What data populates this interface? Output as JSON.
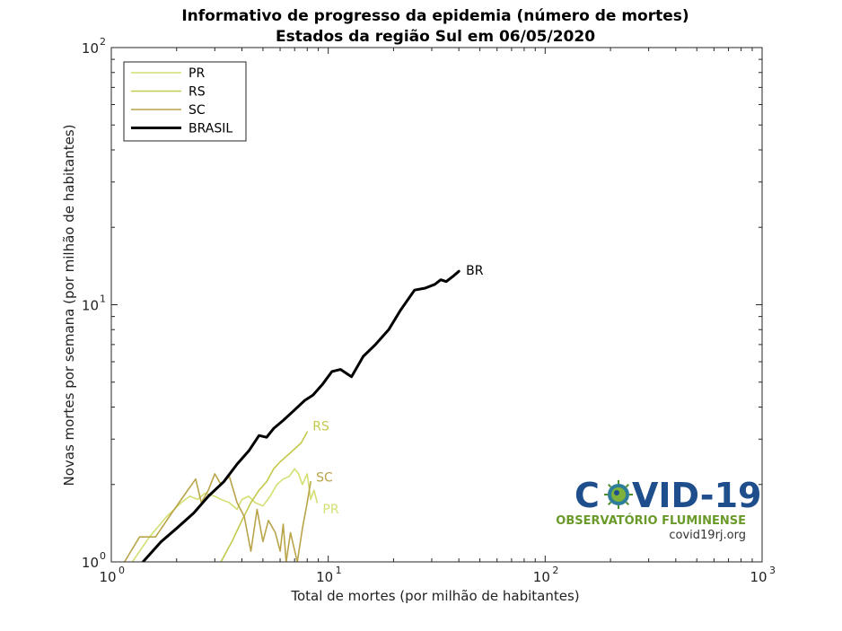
{
  "chart_data": {
    "type": "line",
    "title": "Informativo de progresso da epidemia (número de mortes)",
    "subtitle": "Estados da região Sul em 06/05/2020",
    "xlabel": "Total de mortes (por milhão de habitantes)",
    "ylabel": "Novas mortes por semana (por milhão de habitantes)",
    "xscale": "log",
    "yscale": "log",
    "xlim": [
      1,
      1000
    ],
    "ylim": [
      1,
      100
    ],
    "x_ticks": [
      {
        "base": "10",
        "exp": "0"
      },
      {
        "base": "10",
        "exp": "1"
      },
      {
        "base": "10",
        "exp": "2"
      },
      {
        "base": "10",
        "exp": "3"
      }
    ],
    "y_ticks": [
      {
        "base": "10",
        "exp": "0"
      },
      {
        "base": "10",
        "exp": "1"
      },
      {
        "base": "10",
        "exp": "2"
      }
    ],
    "grid": false,
    "legend_position": "top-left",
    "series": [
      {
        "name": "PR",
        "end_label": "PR",
        "color": "#d4df73",
        "width": 1.6,
        "points": [
          [
            1.25,
            1.0
          ],
          [
            1.5,
            1.25
          ],
          [
            1.8,
            1.5
          ],
          [
            2.1,
            1.7
          ],
          [
            2.3,
            1.8
          ],
          [
            2.5,
            1.75
          ],
          [
            2.7,
            1.85
          ],
          [
            3.0,
            1.8
          ],
          [
            3.2,
            1.75
          ],
          [
            3.5,
            1.7
          ],
          [
            3.8,
            1.6
          ],
          [
            4.0,
            1.75
          ],
          [
            4.3,
            1.8
          ],
          [
            4.6,
            1.7
          ],
          [
            5.0,
            1.65
          ],
          [
            5.4,
            1.8
          ],
          [
            5.8,
            2.0
          ],
          [
            6.2,
            2.1
          ],
          [
            6.6,
            2.15
          ],
          [
            7.0,
            2.3
          ],
          [
            7.3,
            2.2
          ],
          [
            7.6,
            2.0
          ],
          [
            8.0,
            2.2
          ],
          [
            8.3,
            1.75
          ],
          [
            8.6,
            1.9
          ],
          [
            8.9,
            1.7
          ]
        ]
      },
      {
        "name": "RS",
        "end_label": "RS",
        "color": "#c3c94a",
        "width": 1.6,
        "points": [
          [
            3.2,
            1.0
          ],
          [
            3.6,
            1.2
          ],
          [
            4.0,
            1.45
          ],
          [
            4.4,
            1.7
          ],
          [
            4.8,
            1.9
          ],
          [
            5.2,
            2.05
          ],
          [
            5.6,
            2.3
          ],
          [
            6.0,
            2.45
          ],
          [
            6.5,
            2.6
          ],
          [
            7.0,
            2.75
          ],
          [
            7.5,
            2.9
          ],
          [
            8.0,
            3.2
          ]
        ]
      },
      {
        "name": "SC",
        "end_label": "SC",
        "color": "#b9a44a",
        "width": 1.6,
        "points": [
          [
            1.15,
            1.0
          ],
          [
            1.35,
            1.25
          ],
          [
            1.6,
            1.25
          ],
          [
            1.9,
            1.55
          ],
          [
            2.2,
            1.85
          ],
          [
            2.45,
            2.1
          ],
          [
            2.6,
            1.7
          ],
          [
            2.8,
            1.9
          ],
          [
            3.0,
            2.2
          ],
          [
            3.2,
            2.0
          ],
          [
            3.5,
            2.15
          ],
          [
            3.8,
            1.7
          ],
          [
            4.1,
            1.5
          ],
          [
            4.4,
            1.1
          ],
          [
            4.7,
            1.6
          ],
          [
            5.0,
            1.2
          ],
          [
            5.3,
            1.45
          ],
          [
            5.7,
            1.3
          ],
          [
            6.0,
            1.1
          ],
          [
            6.2,
            1.4
          ],
          [
            6.4,
            1.0
          ],
          [
            6.7,
            1.3
          ],
          [
            7.2,
            1.0
          ],
          [
            7.6,
            1.35
          ],
          [
            8.0,
            1.7
          ],
          [
            8.3,
            2.05
          ]
        ]
      },
      {
        "name": "BRASIL",
        "end_label": "BR",
        "color": "#000000",
        "width": 3,
        "points": [
          [
            1.4,
            1.0
          ],
          [
            1.7,
            1.2
          ],
          [
            2.0,
            1.35
          ],
          [
            2.4,
            1.55
          ],
          [
            2.8,
            1.8
          ],
          [
            3.3,
            2.05
          ],
          [
            3.8,
            2.4
          ],
          [
            4.3,
            2.7
          ],
          [
            4.8,
            3.1
          ],
          [
            5.2,
            3.05
          ],
          [
            5.6,
            3.3
          ],
          [
            6.2,
            3.55
          ],
          [
            7.0,
            3.9
          ],
          [
            7.8,
            4.25
          ],
          [
            8.5,
            4.45
          ],
          [
            9.4,
            4.9
          ],
          [
            10.4,
            5.5
          ],
          [
            11.4,
            5.6
          ],
          [
            12.8,
            5.25
          ],
          [
            14.5,
            6.3
          ],
          [
            16.5,
            7.0
          ],
          [
            19.0,
            8.0
          ],
          [
            21.5,
            9.5
          ],
          [
            25.0,
            11.4
          ],
          [
            28.0,
            11.6
          ],
          [
            31.0,
            12.0
          ],
          [
            33.0,
            12.5
          ],
          [
            35.0,
            12.3
          ],
          [
            38.0,
            13.0
          ],
          [
            40.0,
            13.5
          ]
        ]
      }
    ]
  },
  "logo": {
    "word_left": "C",
    "word_right": "VID-19",
    "subtitle": "OBSERVATÓRIO FLUMINENSE",
    "url": "covid19rj.org"
  }
}
